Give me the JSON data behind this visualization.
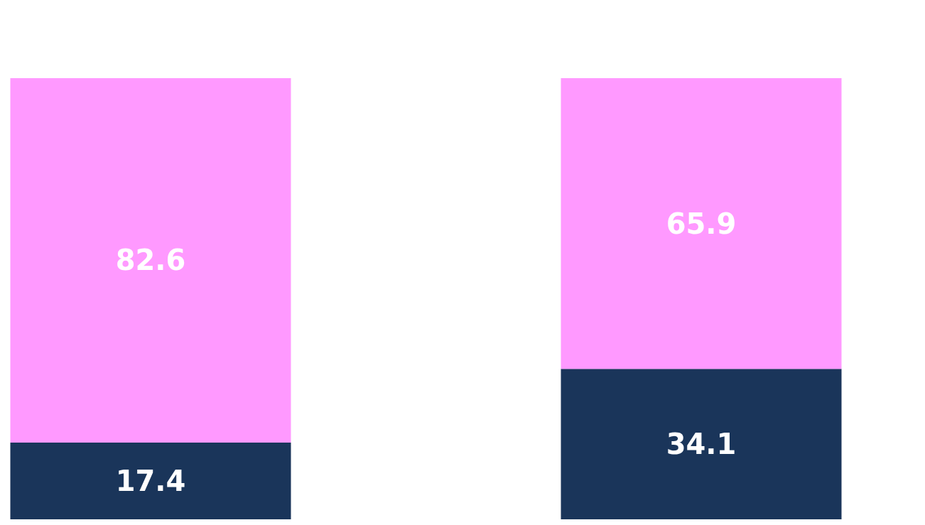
{
  "chart_data": {
    "type": "bar",
    "stacked": true,
    "categories": [
      null,
      null
    ],
    "series": [
      {
        "color": "#1a355a",
        "values": [
          17.4,
          34.1
        ]
      },
      {
        "color": "#ff99ff",
        "values": [
          82.6,
          65.9
        ]
      }
    ],
    "data_labels": true
  }
}
